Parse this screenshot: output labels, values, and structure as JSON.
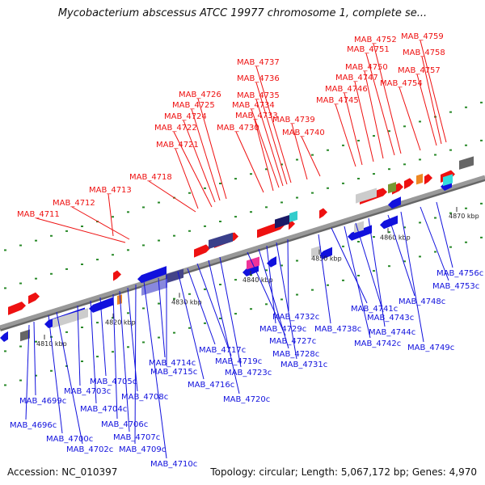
{
  "title": "Mycobacterium abscessus ATCC 19977 chromosome 1, complete se...",
  "footer": {
    "accession": "Accession: NC_010397",
    "summary": "Topology: circular; Length: 5,067,172 bp; Genes: 4,970"
  },
  "scale_labels": [
    "4810 kbp",
    "4820 kbp",
    "4830 kbp",
    "4840 kbp",
    "4850 kbp",
    "4860 kbp",
    "4870 kbp"
  ],
  "top_genes": [
    "MAB_4711",
    "MAB_4712",
    "MAB_4713",
    "MAB_4718",
    "MAB_4721",
    "MAB_4722",
    "MAB_4724",
    "MAB_4725",
    "MAB_4726",
    "MAB_4730",
    "MAB_4733",
    "MAB_4734",
    "MAB_4735",
    "MAB_4736",
    "MAB_4737",
    "MAB_4739",
    "MAB_4740",
    "MAB_4745",
    "MAB_4746",
    "MAB_4747",
    "MAB_4750",
    "MAB_4751",
    "MAB_4752",
    "MAB_4754",
    "MAB_4757",
    "MAB_4758",
    "MAB_4759"
  ],
  "bottom_genes": [
    "MAB_4696c",
    "MAB_4699c",
    "MAB_4700c",
    "MAB_4702c",
    "MAB_4703c",
    "MAB_4704c",
    "MAB_4705c",
    "MAB_4706c",
    "MAB_4707c",
    "MAB_4708c",
    "MAB_4709c",
    "MAB_4710c",
    "MAB_4714c",
    "MAB_4715c",
    "MAB_4716c",
    "MAB_4717c",
    "MAB_4719c",
    "MAB_4720c",
    "MAB_4723c",
    "MAB_4727c",
    "MAB_4728c",
    "MAB_4729c",
    "MAB_4731c",
    "MAB_4732c",
    "MAB_4738c",
    "MAB_4741c",
    "MAB_4742c",
    "MAB_4743c",
    "MAB_4744c",
    "MAB_4748c",
    "MAB_4749c",
    "MAB_4753c",
    "MAB_4756c"
  ],
  "colors": {
    "forward": "#ee1111",
    "reverse": "#1111dd",
    "axis": "#999999",
    "tick": "#2a8a2a"
  }
}
